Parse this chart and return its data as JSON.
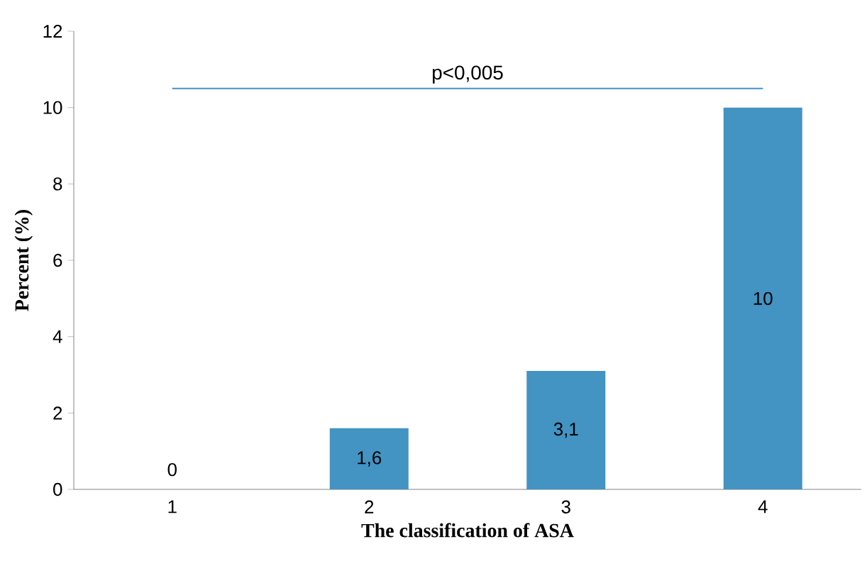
{
  "chart_data": {
    "type": "bar",
    "xlabel": "The classification of ASA",
    "ylabel": "Percent (%)",
    "categories": [
      "1",
      "2",
      "3",
      "4"
    ],
    "values": [
      0,
      1.6,
      3.1,
      10
    ],
    "value_labels": [
      "0",
      "1,6",
      "3,1",
      "10"
    ],
    "color": "#4393c3",
    "ylim": [
      0,
      12
    ],
    "yticks": [
      0,
      2,
      4,
      6,
      8,
      10,
      12
    ],
    "ref_lines": [
      {
        "axis": "y",
        "value": 10.5,
        "label": "p<0,005",
        "color": "#4393c3"
      }
    ],
    "grid": false
  }
}
